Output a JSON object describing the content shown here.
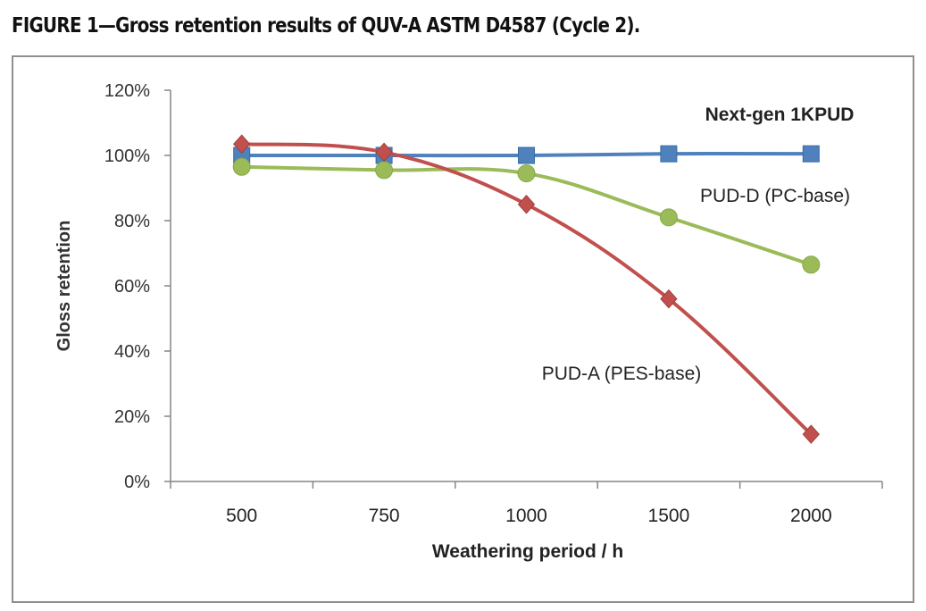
{
  "figure": {
    "title": "FIGURE 1—Gross retention results of QUV-A ASTM D4587 (Cycle 2)."
  },
  "chart_data": {
    "type": "line",
    "title": "",
    "xlabel": "Weathering period / h",
    "ylabel": "Gloss retention",
    "categories": [
      "500",
      "750",
      "1000",
      "1500",
      "2000"
    ],
    "ylim": [
      0,
      120
    ],
    "yticks": [
      "0%",
      "20%",
      "40%",
      "60%",
      "80%",
      "100%",
      "120%"
    ],
    "grid": false,
    "series": [
      {
        "name": "Next-gen 1KPUD",
        "values": [
          100,
          100,
          100,
          100.5,
          100.5
        ],
        "color": "#4f81bd",
        "marker": "square"
      },
      {
        "name": "PUD-D (PC-base)",
        "values": [
          96.5,
          95.5,
          94.5,
          81,
          66.5
        ],
        "color": "#9bbb59",
        "marker": "circle"
      },
      {
        "name": "PUD-A (PES-base)",
        "values": [
          103.5,
          101,
          85,
          56,
          14.5
        ],
        "color": "#c0504d",
        "marker": "diamond"
      }
    ]
  }
}
